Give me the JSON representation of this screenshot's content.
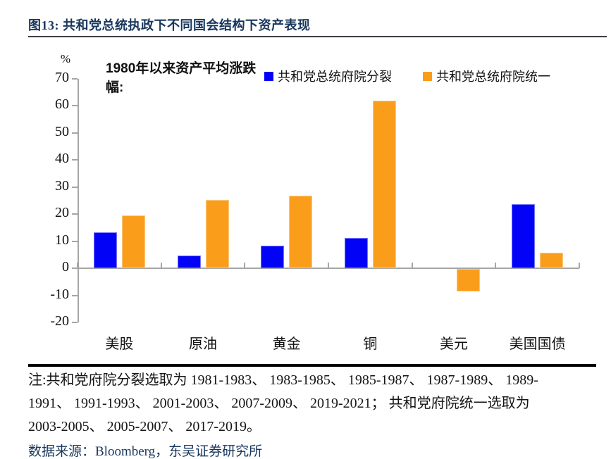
{
  "header": {
    "title": "图13:  共和党总统执政下不同国会结构下资产表现"
  },
  "chart_data": {
    "type": "bar",
    "unit_label": "%",
    "annotation": "1980年以来资产平均涨跌幅:",
    "categories": [
      "美股",
      "原油",
      "黄金",
      "铜",
      "美元",
      "美国国债"
    ],
    "series": [
      {
        "name": "共和党总统府院分裂",
        "color": "#0202F7",
        "values": [
          13.4,
          4.8,
          8.3,
          11.1,
          0,
          23.7
        ]
      },
      {
        "name": "共和党总统府院统一",
        "color": "#FA9D1B",
        "values": [
          19.5,
          25.2,
          26.8,
          61.9,
          -8.3,
          5.8
        ]
      }
    ],
    "ylim": [
      -20,
      70
    ],
    "ytick_step": 10,
    "yticks": [
      "70",
      "60",
      "50",
      "40",
      "30",
      "20",
      "10",
      "0",
      "-10",
      "-20"
    ],
    "legend_position": "top",
    "grid": false
  },
  "footer": {
    "note_lines": [
      "注:共和党府院分裂选取为 1981-1983、 1983-1985、 1985-1987、 1987-1989、 1989-",
      "1991、 1991-1993、 2001-2003、 2007-2009、 2019-2021； 共和党府院统一选取为",
      "2003-2005、 2005-2007、 2017-2019。"
    ],
    "source": "数据来源：Bloomberg，东吴证券研究所"
  },
  "colors": {
    "accent_navy": "#17365D",
    "axis_gray": "#A6A6A6",
    "bar_blue": "#0202F7",
    "bar_orange": "#FA9D1B"
  }
}
